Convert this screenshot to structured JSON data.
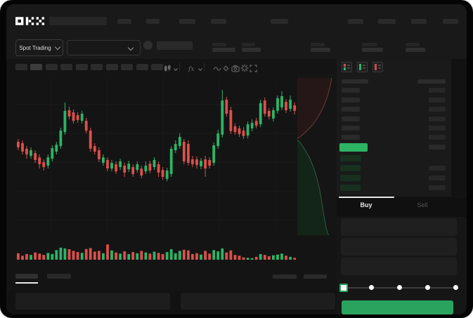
{
  "brand": {
    "name": "OKX"
  },
  "colors": {
    "up": "#2db467",
    "down": "#dd4f4b",
    "accent_green": "#2aa35f",
    "highlight_green": "#2db463",
    "app_bg": "#121212",
    "header_bg": "#191919",
    "chart_bg": "#141414",
    "book_bg": "#1a1a1a",
    "trade_bg": "#161616",
    "placeholder": "#2b2b2b",
    "text": "#e6e6e6",
    "muted": "#585858",
    "grid": "#1e1e1e"
  },
  "top_nav": {
    "logo_placeholder_w": 82,
    "left_item_widths": [
      20,
      19,
      23,
      22,
      25
    ],
    "right_item_widths": [
      22,
      25,
      22,
      22
    ]
  },
  "market_bar": {
    "pair_button": {
      "label": "Spot Trading",
      "chevron_icon": "chevron-down-icon"
    },
    "search_select": {
      "value": "",
      "chevron_icon": "chevron-down-icon"
    },
    "token": {
      "avatar_icon": "coin-avatar",
      "name_bar_w": 51
    },
    "stats": [
      {
        "x": 302,
        "top_w": 20,
        "bottom_w": 33
      },
      {
        "x": 344,
        "top_w": 19,
        "bottom_w": 27
      },
      {
        "x": 442,
        "top_w": 20,
        "bottom_w": 28
      },
      {
        "x": 515,
        "top_w": 22,
        "bottom_w": 30
      },
      {
        "x": 577,
        "top_w": 20,
        "bottom_w": 28
      }
    ]
  },
  "toolbar": {
    "timeframe_count": 10,
    "active_timeframe_index": 1,
    "icons": [
      "chart-type-icon",
      "chevron-down-icon",
      "divider",
      "indicators-icon",
      "chevron-down-icon",
      "divider",
      "line-style-icon",
      "compare-icon",
      "camera-icon",
      "settings-gear-icon",
      "fullscreen-icon"
    ]
  },
  "chart_data": {
    "type": "candlestick",
    "title": "",
    "ylim": [
      0,
      100
    ],
    "grid": {
      "h_lines": 5,
      "v_lines": 5
    },
    "candles_ohlc": [
      [
        59.1,
        60.9,
        53.8,
        55.6
      ],
      [
        58.2,
        60.0,
        51.1,
        52.9
      ],
      [
        54.7,
        56.4,
        48.4,
        51.1
      ],
      [
        50.2,
        55.6,
        48.4,
        53.8
      ],
      [
        52.0,
        53.8,
        45.8,
        47.6
      ],
      [
        49.3,
        51.1,
        42.2,
        44.9
      ],
      [
        46.2,
        48.0,
        40.9,
        43.1
      ],
      [
        44.0,
        51.1,
        42.2,
        49.3
      ],
      [
        48.4,
        56.9,
        46.7,
        55.1
      ],
      [
        52.9,
        59.1,
        51.1,
        57.3
      ],
      [
        56.4,
        68.0,
        54.7,
        66.2
      ],
      [
        65.3,
        84.0,
        63.6,
        78.7
      ],
      [
        79.1,
        81.3,
        73.3,
        75.1
      ],
      [
        77.8,
        79.6,
        70.7,
        72.4
      ],
      [
        76.0,
        77.8,
        71.1,
        72.9
      ],
      [
        72.4,
        78.7,
        70.7,
        76.9
      ],
      [
        72.4,
        74.2,
        64.4,
        66.2
      ],
      [
        66.2,
        68.0,
        52.9,
        54.7
      ],
      [
        56.4,
        58.2,
        51.1,
        52.9
      ],
      [
        53.8,
        55.6,
        46.2,
        48.0
      ],
      [
        45.8,
        51.1,
        44.0,
        49.3
      ],
      [
        47.6,
        49.3,
        40.4,
        42.2
      ],
      [
        42.2,
        47.6,
        40.4,
        45.8
      ],
      [
        44.9,
        46.7,
        38.7,
        40.4
      ],
      [
        43.1,
        48.4,
        41.3,
        46.7
      ],
      [
        44.0,
        45.8,
        36.9,
        39.6
      ],
      [
        41.8,
        47.1,
        40.0,
        45.3
      ],
      [
        43.1,
        44.9,
        36.9,
        38.7
      ],
      [
        41.3,
        46.7,
        39.6,
        44.9
      ],
      [
        42.2,
        44.0,
        36.0,
        37.8
      ],
      [
        40.4,
        46.7,
        38.7,
        44.0
      ],
      [
        45.3,
        47.1,
        39.1,
        40.9
      ],
      [
        43.1,
        49.3,
        41.3,
        47.6
      ],
      [
        44.9,
        46.7,
        36.9,
        39.6
      ],
      [
        41.3,
        43.1,
        35.1,
        36.9
      ],
      [
        35.6,
        42.7,
        34.2,
        40.9
      ],
      [
        38.7,
        56.4,
        36.9,
        54.7
      ],
      [
        53.8,
        60.0,
        52.0,
        57.8
      ],
      [
        56.4,
        64.4,
        54.7,
        62.2
      ],
      [
        59.1,
        60.9,
        44.9,
        46.7
      ],
      [
        57.8,
        60.0,
        44.0,
        45.8
      ],
      [
        48.0,
        50.2,
        43.1,
        44.9
      ],
      [
        48.0,
        49.8,
        42.2,
        44.4
      ],
      [
        43.6,
        48.9,
        41.8,
        47.1
      ],
      [
        48.0,
        50.2,
        36.9,
        42.2
      ],
      [
        47.6,
        49.3,
        42.2,
        44.0
      ],
      [
        45.8,
        58.7,
        44.0,
        56.9
      ],
      [
        56.4,
        66.7,
        54.7,
        64.4
      ],
      [
        63.6,
        92.0,
        61.8,
        85.3
      ],
      [
        85.8,
        87.6,
        75.1,
        76.9
      ],
      [
        79.1,
        81.3,
        64.0,
        65.8
      ],
      [
        68.9,
        70.7,
        63.6,
        65.3
      ],
      [
        67.6,
        69.3,
        62.2,
        64.0
      ],
      [
        66.2,
        68.4,
        60.9,
        62.7
      ],
      [
        63.1,
        72.0,
        61.3,
        70.2
      ],
      [
        67.6,
        73.3,
        65.8,
        71.1
      ],
      [
        72.4,
        74.2,
        67.6,
        69.3
      ],
      [
        70.2,
        85.8,
        68.4,
        83.6
      ],
      [
        85.3,
        87.1,
        75.1,
        76.9
      ],
      [
        78.7,
        80.4,
        73.3,
        75.1
      ],
      [
        73.8,
        80.9,
        72.0,
        79.1
      ],
      [
        78.7,
        88.4,
        76.9,
        86.7
      ],
      [
        80.9,
        91.1,
        79.1,
        88.0
      ],
      [
        84.4,
        86.2,
        77.3,
        79.1
      ],
      [
        80.0,
        88.4,
        78.2,
        85.8
      ],
      [
        82.2,
        84.0,
        76.4,
        78.7
      ]
    ],
    "volumes": [
      40,
      25,
      35,
      30,
      45,
      38,
      30,
      42,
      36,
      60,
      75,
      70,
      65,
      55,
      48,
      42,
      66,
      72,
      50,
      55,
      40,
      95,
      58,
      45,
      38,
      52,
      35,
      48,
      40,
      55,
      45,
      38,
      50,
      42,
      35,
      48,
      65,
      40,
      55,
      62,
      58,
      35,
      40,
      32,
      55,
      38,
      60,
      52,
      70,
      45,
      58,
      30,
      25,
      15,
      12,
      10,
      18,
      35,
      30,
      22,
      28,
      32,
      38,
      25,
      18,
      12
    ],
    "depth": {
      "asks_curve": [
        [
          49,
          3
        ],
        [
          46,
          18
        ],
        [
          42,
          32
        ],
        [
          36,
          47
        ],
        [
          28,
          61
        ],
        [
          20,
          72
        ],
        [
          11,
          81
        ],
        [
          4,
          87
        ],
        [
          0,
          89
        ]
      ],
      "bids_curve": [
        [
          0,
          91
        ],
        [
          4,
          95
        ],
        [
          10,
          104
        ],
        [
          17,
          116
        ],
        [
          23,
          130
        ],
        [
          28,
          146
        ],
        [
          32,
          163
        ],
        [
          35,
          181
        ],
        [
          38,
          200
        ],
        [
          41,
          216
        ],
        [
          43,
          224
        ],
        [
          45,
          227
        ]
      ],
      "asks_fill": "#251717",
      "asks_line": "#6e3c38",
      "bids_fill": "#132419",
      "bids_line": "#2f5c44"
    }
  },
  "order_book": {
    "view_icons": [
      "book-all-icon",
      "book-bids-icon",
      "book-asks-icon"
    ],
    "header": {
      "left_w": 38,
      "right_w": 40
    },
    "ask_rows": [
      {
        "left_w": 26,
        "right_w": 24
      },
      {
        "left_w": 26,
        "right_w": 24
      },
      {
        "left_w": 26,
        "right_w": 24
      },
      {
        "left_w": 26,
        "right_w": 24
      },
      {
        "left_w": 26,
        "right_w": 24
      },
      {
        "left_w": 26,
        "right_w": 24
      }
    ],
    "last_price_highlight": {
      "w": 40,
      "color": "#2db463",
      "right_w": 24
    },
    "bid_rows": [
      {
        "left_w": 30,
        "right_w": 0
      },
      {
        "left_w": 29,
        "right_w": 24
      },
      {
        "left_w": 29,
        "right_w": 24
      },
      {
        "left_w": 29,
        "right_w": 24
      }
    ]
  },
  "trade_panel": {
    "tabs": [
      {
        "label": "Buy",
        "active": true
      },
      {
        "label": "Sell",
        "active": false
      }
    ],
    "field_count": 3,
    "slider": {
      "stops": 5,
      "active_stop": 0
    },
    "submit_button": {
      "color": "#2aa35f",
      "label": ""
    }
  },
  "bottom_panel": {
    "tab_widths": [
      32,
      34
    ],
    "active_tab_index": 0,
    "right_item_widths": [
      34,
      33
    ],
    "content_panels": 2
  }
}
